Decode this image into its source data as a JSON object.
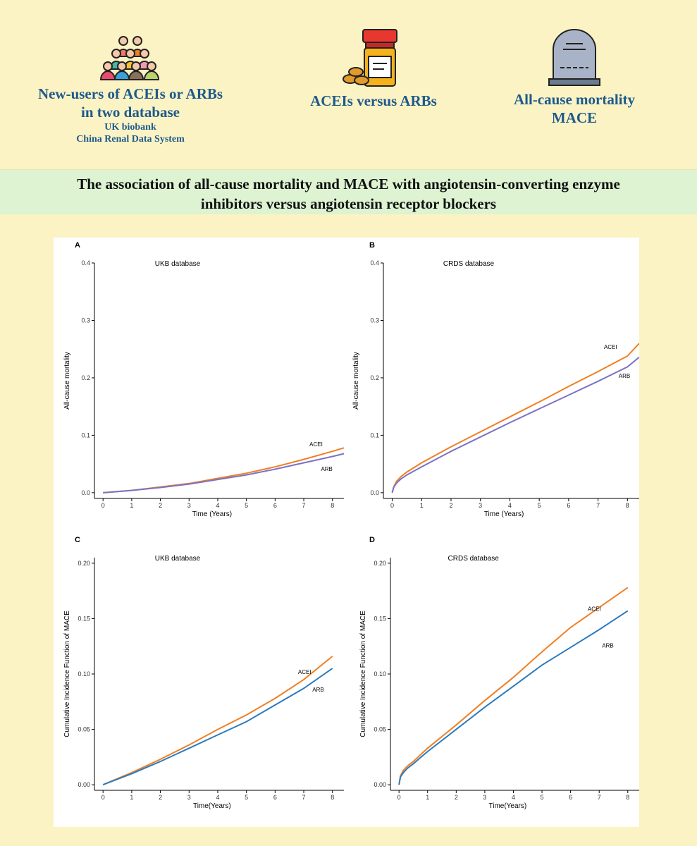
{
  "header": {
    "col1": {
      "title_line1": "New-users of ACEIs or ARBs",
      "title_line2": "in two database",
      "sub1": "UK biobank",
      "sub2": "China Renal Data System",
      "icon": "people-group-icon"
    },
    "col2": {
      "title": "ACEIs versus ARBs",
      "icon": "pill-bottle-icon"
    },
    "col3": {
      "title_line1": "All-cause mortality",
      "title_line2": "MACE",
      "icon": "tombstone-icon"
    }
  },
  "banner": {
    "line1": "The association of all-cause mortality and MACE with angiotensin-converting enzyme",
    "line2": "inhibitors versus angiotensin receptor blockers"
  },
  "colors": {
    "acei": "#f07f22",
    "arb_purple": "#7a72c6",
    "arb_blue": "#2b7bbf",
    "text_blue": "#1e5a8c",
    "background": "#fbf3c4",
    "banner": "#ddf3d2"
  },
  "chart_data": [
    {
      "panel": "A",
      "type": "line",
      "title": "UKB database",
      "xlabel": "Time (Years)",
      "ylabel": "All-cause mortality",
      "xlim": [
        -0.3,
        8.4
      ],
      "ylim": [
        -0.01,
        0.4
      ],
      "xticks": [
        0,
        1,
        2,
        3,
        4,
        5,
        6,
        7,
        8
      ],
      "yticks": [
        0.0,
        0.1,
        0.2,
        0.3,
        0.4
      ],
      "ytick_labels": [
        "0.0",
        "0.1",
        "0.2",
        "0.3",
        "0.4"
      ],
      "series": [
        {
          "name": "ACEI",
          "color": "#f07f22",
          "x": [
            0,
            1,
            2,
            3,
            4,
            5,
            6,
            7,
            8,
            8.4
          ],
          "y": [
            0.0,
            0.004,
            0.01,
            0.016,
            0.025,
            0.034,
            0.045,
            0.058,
            0.072,
            0.078
          ]
        },
        {
          "name": "ARB",
          "color": "#7a72c6",
          "x": [
            0,
            1,
            2,
            3,
            4,
            5,
            6,
            7,
            8,
            8.4
          ],
          "y": [
            0.0,
            0.004,
            0.009,
            0.015,
            0.023,
            0.031,
            0.041,
            0.052,
            0.063,
            0.068
          ]
        }
      ],
      "labels": [
        {
          "text": "ACEI",
          "x": 7.2,
          "y": 0.081
        },
        {
          "text": "ARB",
          "x": 7.6,
          "y": 0.038
        }
      ]
    },
    {
      "panel": "B",
      "type": "line",
      "title": "CRDS database",
      "xlabel": "Time (Years)",
      "ylabel": "All-cause mortality",
      "xlim": [
        -0.3,
        8.4
      ],
      "ylim": [
        -0.01,
        0.4
      ],
      "xticks": [
        0,
        1,
        2,
        3,
        4,
        5,
        6,
        7,
        8
      ],
      "yticks": [
        0.0,
        0.1,
        0.2,
        0.3,
        0.4
      ],
      "ytick_labels": [
        "0.0",
        "0.1",
        "0.2",
        "0.3",
        "0.4"
      ],
      "series": [
        {
          "name": "ACEI",
          "color": "#f07f22",
          "x": [
            0,
            0.05,
            0.15,
            0.3,
            0.5,
            1,
            2,
            3,
            4,
            5,
            6,
            7,
            8,
            8.4
          ],
          "y": [
            0.0,
            0.01,
            0.02,
            0.028,
            0.036,
            0.052,
            0.08,
            0.106,
            0.132,
            0.158,
            0.185,
            0.211,
            0.238,
            0.26
          ]
        },
        {
          "name": "ARB",
          "color": "#7a72c6",
          "x": [
            0,
            0.05,
            0.15,
            0.3,
            0.5,
            1,
            2,
            3,
            4,
            5,
            6,
            7,
            8,
            8.4
          ],
          "y": [
            0.0,
            0.009,
            0.017,
            0.024,
            0.031,
            0.045,
            0.072,
            0.097,
            0.122,
            0.146,
            0.17,
            0.194,
            0.219,
            0.236
          ]
        }
      ],
      "labels": [
        {
          "text": "ACEI",
          "x": 7.2,
          "y": 0.25
        },
        {
          "text": "ARB",
          "x": 7.7,
          "y": 0.2
        }
      ]
    },
    {
      "panel": "C",
      "type": "line",
      "title": "UKB database",
      "xlabel": "Time(Years)",
      "ylabel": "Cumulative Incidence Function of MACE",
      "xlim": [
        -0.3,
        8.4
      ],
      "ylim": [
        -0.005,
        0.205
      ],
      "xticks": [
        0,
        1,
        2,
        3,
        4,
        5,
        6,
        7,
        8
      ],
      "yticks": [
        0.0,
        0.05,
        0.1,
        0.15,
        0.2
      ],
      "ytick_labels": [
        "0.00",
        "0.05",
        "0.10",
        "0.15",
        "0.20"
      ],
      "series": [
        {
          "name": "ACEI",
          "color": "#f07f22",
          "x": [
            0,
            1,
            2,
            3,
            4,
            5,
            6,
            7,
            8
          ],
          "y": [
            0.0,
            0.011,
            0.023,
            0.036,
            0.05,
            0.063,
            0.078,
            0.095,
            0.116
          ]
        },
        {
          "name": "ARB",
          "color": "#2b7bbf",
          "x": [
            0,
            1,
            2,
            3,
            4,
            5,
            6,
            7,
            8
          ],
          "y": [
            0.0,
            0.01,
            0.021,
            0.033,
            0.045,
            0.057,
            0.072,
            0.087,
            0.105
          ]
        }
      ],
      "labels": [
        {
          "text": "ACEI",
          "x": 6.8,
          "y": 0.1
        },
        {
          "text": "ARB",
          "x": 7.3,
          "y": 0.084
        }
      ]
    },
    {
      "panel": "D",
      "type": "line",
      "title": "CRDS database",
      "xlabel": "Time(Years)",
      "ylabel": "Cumulative Incidence Function of MACE",
      "xlim": [
        -0.3,
        8.4
      ],
      "ylim": [
        -0.005,
        0.205
      ],
      "xticks": [
        0,
        1,
        2,
        3,
        4,
        5,
        6,
        7,
        8
      ],
      "yticks": [
        0.0,
        0.05,
        0.1,
        0.15,
        0.2
      ],
      "ytick_labels": [
        "0.00",
        "0.05",
        "0.10",
        "0.15",
        "0.20"
      ],
      "series": [
        {
          "name": "ACEI",
          "color": "#f07f22",
          "x": [
            0,
            0.05,
            0.15,
            0.3,
            0.5,
            1,
            2,
            3,
            4,
            5,
            6,
            7,
            8
          ],
          "y": [
            0.0,
            0.008,
            0.013,
            0.017,
            0.021,
            0.033,
            0.054,
            0.076,
            0.097,
            0.12,
            0.142,
            0.16,
            0.178
          ]
        },
        {
          "name": "ARB",
          "color": "#2b7bbf",
          "x": [
            0,
            0.05,
            0.15,
            0.3,
            0.5,
            1,
            2,
            3,
            4,
            5,
            6,
            7,
            8
          ],
          "y": [
            0.0,
            0.007,
            0.011,
            0.015,
            0.019,
            0.03,
            0.05,
            0.07,
            0.089,
            0.108,
            0.124,
            0.14,
            0.157
          ]
        }
      ],
      "labels": [
        {
          "text": "ACEI",
          "x": 6.6,
          "y": 0.157
        },
        {
          "text": "ARB",
          "x": 7.1,
          "y": 0.124
        }
      ]
    }
  ]
}
